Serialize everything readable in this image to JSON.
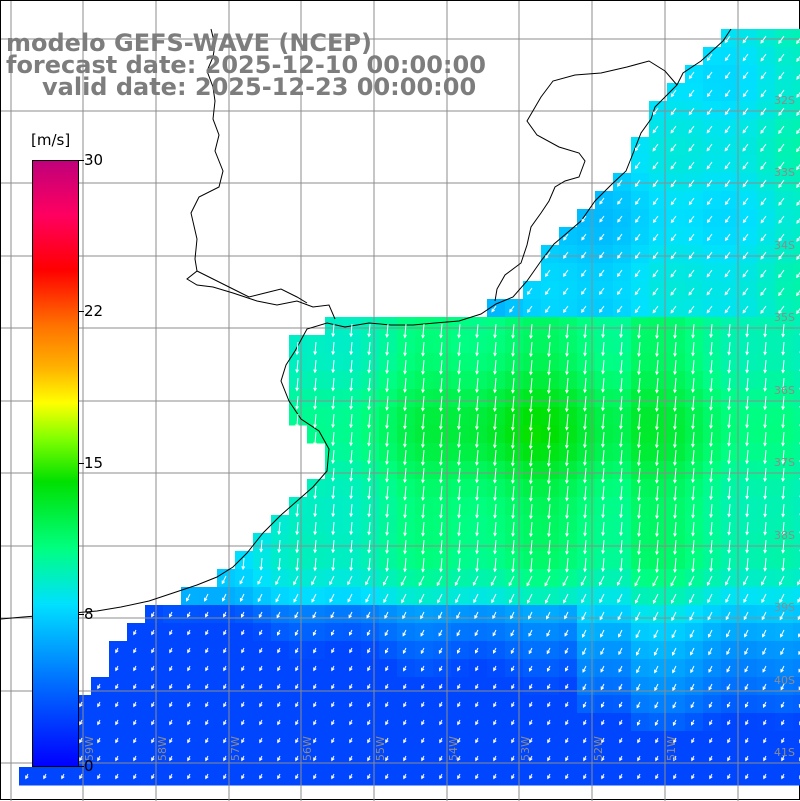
{
  "title": {
    "line1": "modelo GEFS-WAVE (NCEP)",
    "line2": "forecast date: 2025-12-10 00:00:00",
    "line3": "valid date: 2025-12-23 00:00:00"
  },
  "colorbar": {
    "unit": "[m/s]",
    "ticks": [
      "30",
      "22",
      "15",
      "8",
      "0"
    ],
    "range": [
      0,
      30
    ]
  },
  "lat_labels": [
    "32S",
    "33S",
    "34S",
    "35S",
    "36S",
    "37S",
    "38S",
    "39S",
    "40S",
    "41S"
  ],
  "lon_labels": [
    "59W",
    "58W",
    "57W",
    "56W",
    "55W",
    "54W",
    "53W",
    "52W",
    "51W"
  ],
  "colors": {
    "land": "#ffffff",
    "grid": "#8c8c8c",
    "coast": "#000000",
    "arrow": "#ffffff",
    "title": "#7d7d7d"
  }
}
